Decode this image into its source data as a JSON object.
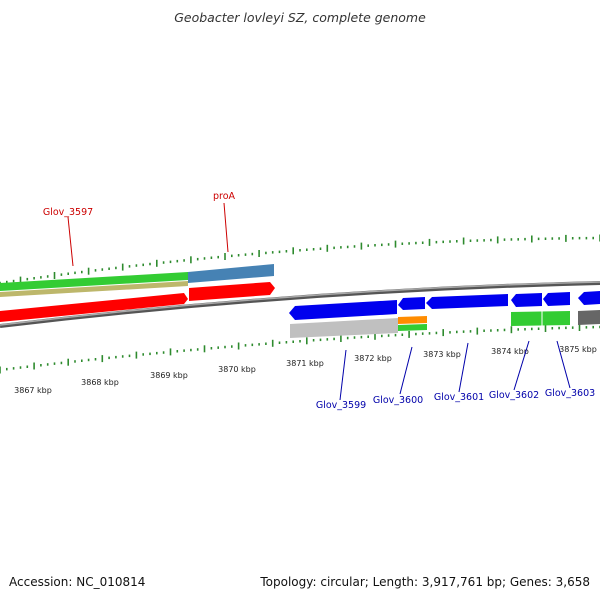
{
  "title": "Geobacter lovleyi SZ, complete genome",
  "footer": {
    "accession": "Accession: NC_010814",
    "summary": "Topology: circular; Length: 3,917,761 bp; Genes: 3,658"
  },
  "scale": {
    "unit": "kbp",
    "major_ticks": [
      "3867 kbp",
      "3868 kbp",
      "3869 kbp",
      "3870 kbp",
      "3871 kbp",
      "3872 kbp",
      "3873 kbp",
      "3874 kbp",
      "3875 kbp"
    ]
  },
  "colors": {
    "plus_label": "#cc0000",
    "minus_label": "#0000aa",
    "tick": "#2e8b2e",
    "backbone": "#777777",
    "red_gene": "#ff0000",
    "blue_gene": "#0000ee",
    "green_gene": "#33cc33",
    "steel_gene": "#4682b4",
    "khaki_gene": "#bdb76b",
    "gray_gene": "#c0c0c0",
    "orange_gene": "#ff8c00",
    "dark_gene": "#666666"
  },
  "gene_labels": {
    "plus": [
      "Glov_3597",
      "proA"
    ],
    "minus": [
      "Glov_3599",
      "Glov_3600",
      "Glov_3601",
      "Glov_3602",
      "Glov_3603"
    ]
  }
}
